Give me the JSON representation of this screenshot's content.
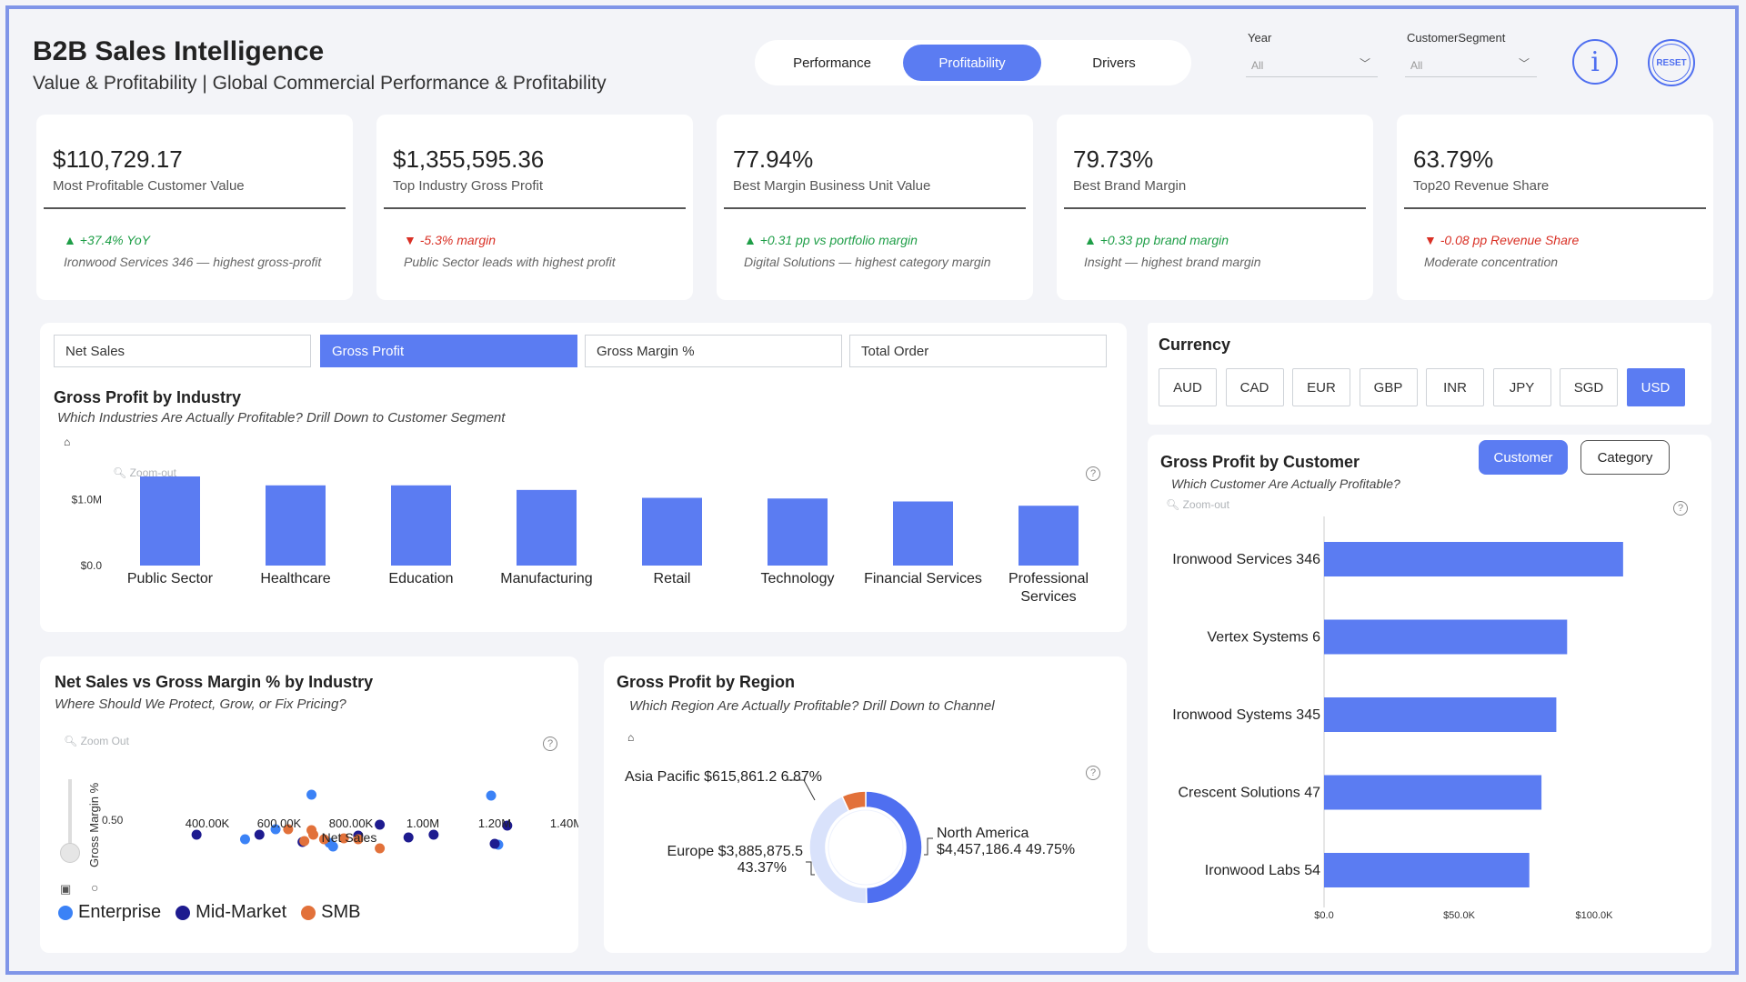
{
  "header": {
    "title": "B2B Sales Intelligence",
    "subtitle": "Value & Profitability | Global Commercial Performance & Profitability",
    "tabs": [
      {
        "label": "Performance",
        "active": false
      },
      {
        "label": "Profitability",
        "active": true
      },
      {
        "label": "Drivers",
        "active": false
      }
    ],
    "filters": [
      {
        "label": "Year",
        "value": "All"
      },
      {
        "label": "CustomerSegment",
        "value": "All"
      }
    ],
    "info_icon": "info-icon",
    "reset_label": "RESET"
  },
  "kpis": [
    {
      "value": "$110,729.17",
      "label": "Most Profitable Customer Value",
      "delta": "▲ +37.4% YoY",
      "direction": "up",
      "note": "Ironwood Services 346 — highest gross-profit"
    },
    {
      "value": "$1,355,595.36",
      "label": "Top Industry Gross Profit",
      "delta": "▼ -5.3% margin",
      "direction": "down",
      "note": "Public Sector leads with highest profit"
    },
    {
      "value": "77.94%",
      "label": "Best Margin Business Unit Value",
      "delta": "▲ +0.31 pp vs portfolio margin",
      "direction": "up",
      "note": "Digital Solutions — highest category margin"
    },
    {
      "value": "79.73%",
      "label": "Best Brand Margin",
      "delta": "▲ +0.33 pp brand margin",
      "direction": "up",
      "note": "Insight — highest brand margin"
    },
    {
      "value": "63.79%",
      "label": "Top20 Revenue Share",
      "delta": "▼ -0.08 pp Revenue Share",
      "direction": "down",
      "note": "Moderate concentration"
    }
  ],
  "metric_buttons": [
    {
      "label": "Net Sales",
      "active": false
    },
    {
      "label": "Gross Profit",
      "active": true
    },
    {
      "label": "Gross Margin %",
      "active": false
    },
    {
      "label": "Total Order",
      "active": false
    }
  ],
  "industry_chart": {
    "title": "Gross Profit by Industry",
    "subtitle": "Which Industries Are Actually Profitable? Drill Down to Customer Segment",
    "zoom_label": "Zoom-out",
    "help": "?",
    "y_ticks": [
      "$1.0M",
      "$0.0"
    ]
  },
  "currency": {
    "title": "Currency",
    "options": [
      "AUD",
      "CAD",
      "EUR",
      "GBP",
      "INR",
      "JPY",
      "SGD",
      "USD"
    ],
    "selected": "USD"
  },
  "customer_chart": {
    "title": "Gross Profit by Customer",
    "subtitle": "Which Customer Are Actually Profitable?",
    "zoom_label": "Zoom-out",
    "toggle": [
      {
        "label": "Customer",
        "active": true
      },
      {
        "label": "Category",
        "active": false
      }
    ],
    "x_ticks": [
      "$0.0",
      "$50.0K",
      "$100.0K"
    ]
  },
  "scatter_chart": {
    "title": "Net Sales vs Gross Margin % by Industry",
    "subtitle": "Where Should We Protect, Grow, or Fix Pricing?",
    "zoom_label": "Zoom Out",
    "xlabel": "Net Sales",
    "ylabel": "Gross Margin %",
    "y_tick": "0.50",
    "x_ticks": [
      "400.00K",
      "600.00K",
      "800.00K",
      "1.00M",
      "1.20M",
      "1.40M"
    ],
    "legend": [
      {
        "name": "Enterprise",
        "color": "#3b82f6"
      },
      {
        "name": "Mid-Market",
        "color": "#1e1b8f"
      },
      {
        "name": "SMB",
        "color": "#e2713a"
      }
    ]
  },
  "region_chart": {
    "title": "Gross Profit by Region",
    "subtitle": "Which Region Are Actually Profitable? Drill Down to Channel",
    "labels": {
      "asia": "Asia Pacific $615,861.2 6.87%",
      "europe_line1": "Europe $3,885,875.5",
      "europe_line2": "43.37%",
      "na_line1": "North America",
      "na_line2": "$4,457,186.4 49.75%"
    }
  },
  "chart_data": [
    {
      "type": "bar",
      "title": "Gross Profit by Industry",
      "categories": [
        "Public Sector",
        "Healthcare",
        "Education",
        "Manufacturing",
        "Retail",
        "Technology",
        "Financial Services",
        "Professional Services"
      ],
      "values": [
        1355595.36,
        1220000,
        1220000,
        1150000,
        1030000,
        1020000,
        975000,
        910000
      ],
      "ylim": [
        0,
        1300000
      ],
      "color": "#5b7cf2"
    },
    {
      "type": "bar",
      "orientation": "horizontal",
      "title": "Gross Profit by Customer",
      "categories": [
        "Ironwood Services 346",
        "Vertex Systems 6",
        "Ironwood Systems 345",
        "Crescent Solutions 47",
        "Ironwood Labs 54"
      ],
      "values": [
        110729.17,
        90000,
        86000,
        80500,
        76000
      ],
      "xlim": [
        0,
        115000
      ],
      "color": "#5b7cf2"
    },
    {
      "type": "scatter",
      "title": "Net Sales vs Gross Margin % by Industry",
      "xlabel": "Net Sales",
      "ylabel": "Gross Margin %",
      "xlim": [
        280000,
        1480000
      ],
      "ylim": [
        0.0,
        0.85
      ],
      "series": [
        {
          "name": "Enterprise",
          "color": "#3b82f6",
          "points": [
            [
              690000,
              0.78
            ],
            [
              1190000,
              0.77
            ],
            [
              590000,
              0.4
            ],
            [
              505000,
              0.29
            ],
            [
              740000,
              0.25
            ],
            [
              750000,
              0.21
            ],
            [
              1210000,
              0.23
            ]
          ]
        },
        {
          "name": "Mid-Market",
          "color": "#1e1b8f",
          "points": [
            [
              370000,
              0.34
            ],
            [
              545000,
              0.34
            ],
            [
              880000,
              0.45
            ],
            [
              1235000,
              0.44
            ],
            [
              820000,
              0.33
            ],
            [
              960000,
              0.31
            ],
            [
              1030000,
              0.34
            ],
            [
              665000,
              0.26
            ],
            [
              1200000,
              0.24
            ]
          ]
        },
        {
          "name": "SMB",
          "color": "#e2713a",
          "points": [
            [
              625000,
              0.4
            ],
            [
              690000,
              0.39
            ],
            [
              695000,
              0.34
            ],
            [
              725000,
              0.29
            ],
            [
              780000,
              0.3
            ],
            [
              820000,
              0.29
            ],
            [
              670000,
              0.27
            ],
            [
              880000,
              0.19
            ]
          ]
        }
      ]
    },
    {
      "type": "pie",
      "title": "Gross Profit by Region",
      "categories": [
        "North America",
        "Europe",
        "Asia Pacific"
      ],
      "values": [
        4457186.4,
        3885875.5,
        615861.2
      ],
      "percent": [
        49.75,
        43.37,
        6.87
      ],
      "colors": [
        "#4f6ff0",
        "#d9e2fb",
        "#e2713a"
      ]
    }
  ]
}
